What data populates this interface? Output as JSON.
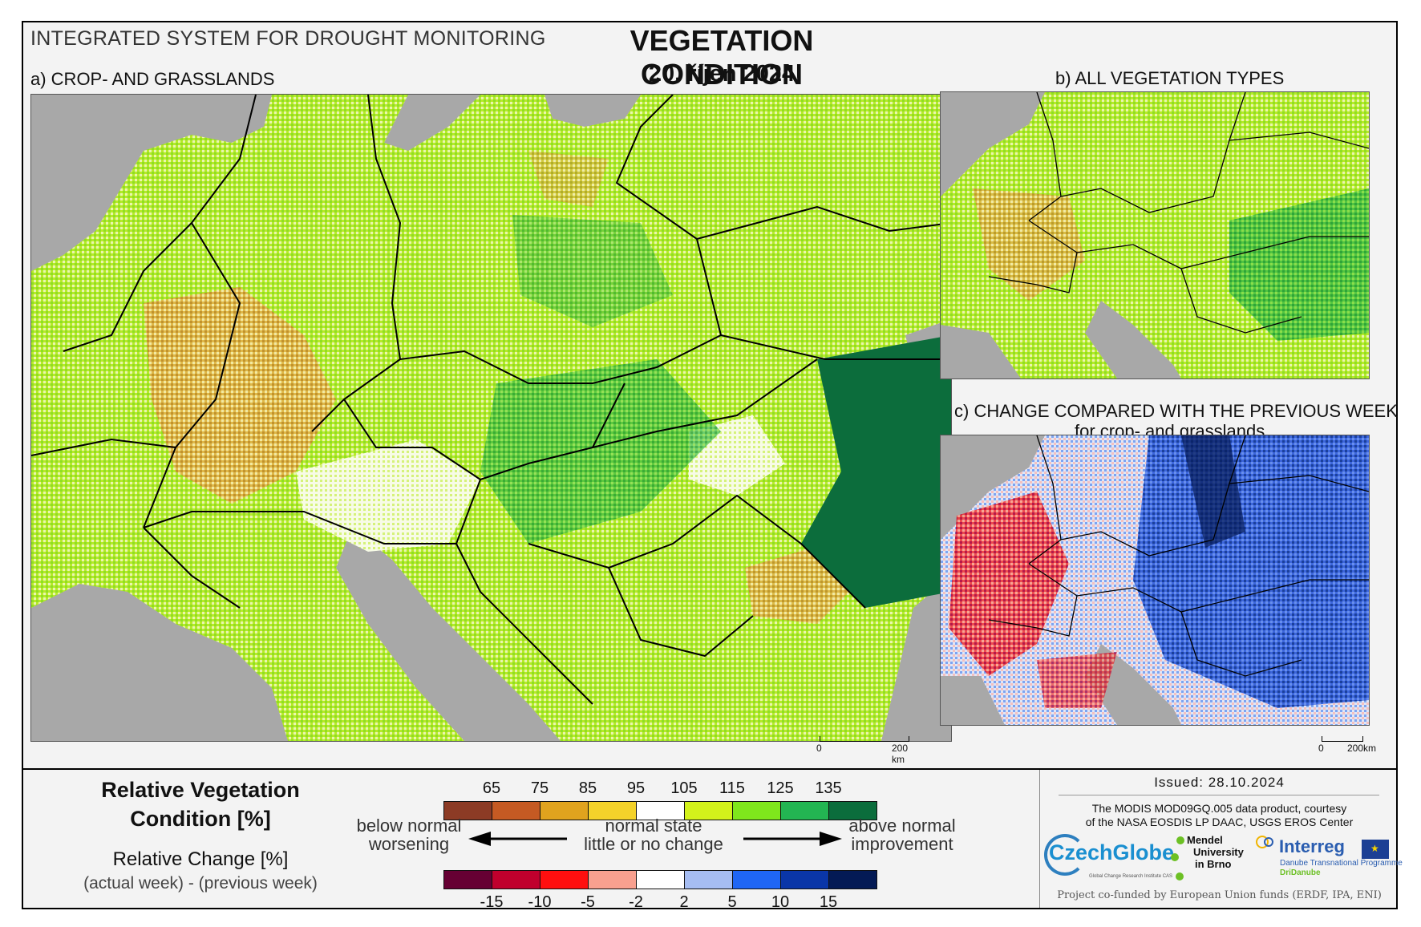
{
  "header": {
    "system_name": "INTEGRATED SYSTEM FOR DROUGHT MONITORING",
    "title": "VEGETATION CONDITION",
    "date": "20. říjen 2024"
  },
  "panels": {
    "a_label": "a) CROP- AND GRASSLANDS",
    "b_label": "b) ALL VEGETATION TYPES",
    "c_label": "c) CHANGE COMPARED WITH THE PREVIOUS WEEK",
    "c_sublabel": "for crop- and grasslands"
  },
  "scalebars": {
    "a": {
      "zero": "0",
      "end": "200 km"
    },
    "c": {
      "zero": "0",
      "end": "200km"
    }
  },
  "legend": {
    "rvc_title_line1": "Relative Vegetation",
    "rvc_title_line2": "Condition [%]",
    "rc_title": "Relative Change [%]",
    "rc_subtitle": "(actual week) - (previous week)",
    "rvc_ticks": [
      "65",
      "75",
      "85",
      "95",
      "105",
      "115",
      "125",
      "135"
    ],
    "rvc_colors": [
      "#8c3b25",
      "#c55a23",
      "#e0a31e",
      "#f4d22a",
      "#ffffff",
      "#d3f21b",
      "#7fe61c",
      "#23b552",
      "#0b6d3c"
    ],
    "rc_ticks": [
      "-15",
      "-10",
      "-5",
      "-2",
      "2",
      "5",
      "10",
      "15"
    ],
    "rc_colors": [
      "#660033",
      "#c0002d",
      "#ff0f0f",
      "#f8a08f",
      "#ffffff",
      "#a6bdf2",
      "#1f66f5",
      "#0a36a8",
      "#041a55"
    ],
    "left_desc_line1": "below normal",
    "left_desc_line2": "worsening",
    "center_desc_line1": "normal state",
    "center_desc_line2": "little or no change",
    "right_desc_line1": "above normal",
    "right_desc_line2": "improvement"
  },
  "credits": {
    "issued": "Issued: 28.10.2024",
    "line1": "The MODIS MOD09GQ.005 data product, courtesy",
    "line2": "of the NASA EOSDIS LP DAAC, USGS EROS Center",
    "czechglobe": "CzechGlobe",
    "czechglobe_sub": "Global Change Research Institute CAS",
    "mendel_1": "Mendel",
    "mendel_2": "University",
    "mendel_3": "in Brno",
    "interreg": "Interreg",
    "interreg_sub1": "Danube Transnational Programme",
    "interreg_sub2": "DriDanube",
    "funding": "Project co-funded by European Union funds (ERDF, IPA, ENI)"
  },
  "colors": {
    "sea": "#a8a8a8",
    "frame_bg": "#f3f3f3",
    "border_lines": "#000000"
  }
}
